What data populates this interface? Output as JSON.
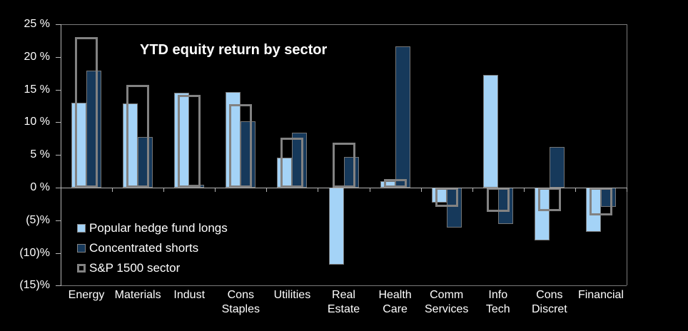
{
  "chart_data": {
    "type": "bar",
    "title": "YTD equity return by sector",
    "categories": [
      "Energy",
      "Materials",
      "Indust",
      "Cons Staples",
      "Utilities",
      "Real Estate",
      "Health Care",
      "Comm Services",
      "Info Tech",
      "Cons Discret",
      "Financial"
    ],
    "categories_display": [
      "Energy",
      "Materials",
      "Indust",
      "Cons\nStaples",
      "Utilities",
      "Real\nEstate",
      "Health\nCare",
      "Comm\nServices",
      "Info\nTech",
      "Cons\nDiscret",
      "Financial"
    ],
    "series": [
      {
        "name": "Popular hedge fund longs",
        "color": "#A4D3F7",
        "style": "filled",
        "values": [
          13.0,
          12.9,
          14.5,
          14.6,
          4.6,
          -11.8,
          1.0,
          -2.3,
          17.2,
          -8.1,
          -6.8
        ]
      },
      {
        "name": "Concentrated shorts",
        "color": "#16395B",
        "style": "filled",
        "values": [
          17.9,
          7.7,
          0.4,
          10.2,
          8.4,
          4.7,
          21.6,
          -6.1,
          -5.6,
          6.2,
          -3.0
        ]
      },
      {
        "name": "S&P 1500 sector",
        "color": "#7F7F7F",
        "style": "outline",
        "values": [
          23.0,
          15.7,
          14.2,
          12.8,
          7.6,
          6.9,
          1.3,
          -2.9,
          -3.7,
          -3.6,
          -4.3
        ]
      }
    ],
    "ylim": [
      -15,
      25
    ],
    "y_ticks": [
      {
        "value": 25,
        "label": "25 %"
      },
      {
        "value": 20,
        "label": "20 %"
      },
      {
        "value": 15,
        "label": "15 %"
      },
      {
        "value": 10,
        "label": "10 %"
      },
      {
        "value": 5,
        "label": "5 %"
      },
      {
        "value": 0,
        "label": "0 %"
      },
      {
        "value": -5,
        "label": "(5)%"
      },
      {
        "value": -10,
        "label": "(10)%"
      },
      {
        "value": -15,
        "label": "(15)%"
      }
    ],
    "grid": false,
    "legend_position": "inside-bottom-left",
    "colors": {
      "background": "#000000",
      "text": "#FFFFFF",
      "axis_line": "#B5B5B5",
      "plot_border": "#7A7A7A",
      "longs": "#A4D3F7",
      "shorts": "#16395B",
      "sp_outline": "#828282"
    }
  }
}
